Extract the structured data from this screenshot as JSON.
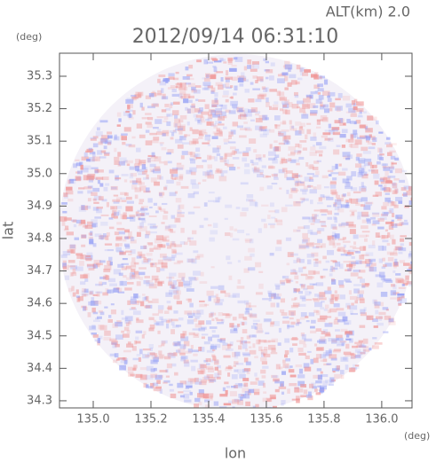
{
  "chart_data": {
    "type": "image",
    "title": "2012/09/14 06:31:10",
    "annotation": "ALT(km) 2.0",
    "x_label": "lon",
    "y_label": "lat",
    "x_unit": "(deg)",
    "y_unit": "(deg)",
    "xlim": [
      134.883,
      136.105
    ],
    "ylim": [
      34.278,
      35.371
    ],
    "xticks": [
      {
        "value": 135.0,
        "label": "135.0"
      },
      135.2,
      135.4,
      135.6,
      135.8,
      {
        "value": 136.0,
        "label": "136.0"
      }
    ],
    "yticks": [
      34.3,
      34.4,
      34.5,
      34.6,
      34.7,
      34.8,
      34.9,
      {
        "value": 35.0,
        "label": "35.0"
      },
      35.1,
      35.2,
      35.3
    ]
  }
}
